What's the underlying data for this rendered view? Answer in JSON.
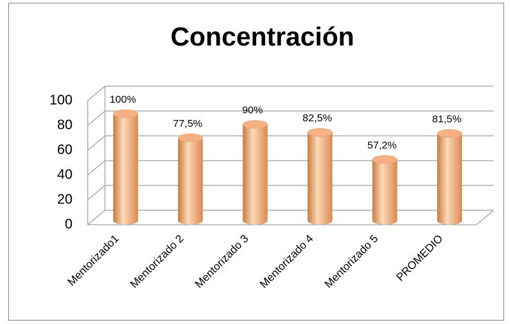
{
  "chart_data": {
    "type": "bar3d",
    "title": "Concentración",
    "categories": [
      "Mentorizado1",
      "Mentorizado 2",
      "Mentorizado 3",
      "Mentorizado 4",
      "Mentorizado 5",
      "PROMEDIO"
    ],
    "values": [
      100,
      77.5,
      90,
      82.5,
      57.2,
      81.5
    ],
    "value_labels": [
      "100%",
      "77,5%",
      "90%",
      "82,5%",
      "57,2%",
      "81,5%"
    ],
    "color": "#f4b183",
    "ylim": [
      0,
      100
    ],
    "yticks": [
      0,
      20,
      40,
      60,
      80,
      100
    ],
    "grid": true
  }
}
